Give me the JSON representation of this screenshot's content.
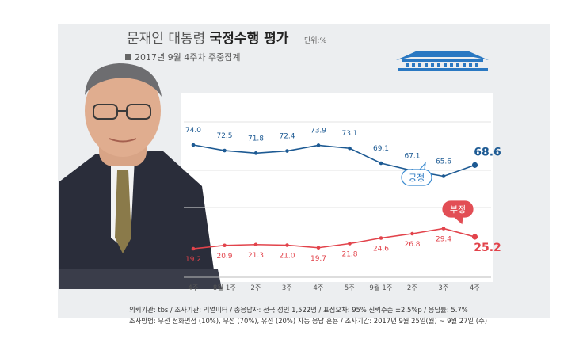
{
  "header": {
    "title_plain": "문재인 대통령",
    "title_bold": "국정수행 평가",
    "unit": "단위:%",
    "subtitle": "2017년 9월 4주차 주중집계"
  },
  "footer": {
    "line1": "의뢰기관: tbs / 조사기관: 리얼미터 / 총응답자: 전국 성인 1,522명 / 표집오차: 95% 신뢰수준 ±2.5%p / 응답률: 5.7%",
    "line2": "조사방법: 무선 전화면접 (10%), 무선 (70%), 유선 (20%) 자동 응답 혼용 / 조사기간: 2017년 9월 25일(월) ~ 9월 27일 (수)"
  },
  "chart_data": {
    "type": "line",
    "categories": [
      "4주",
      "8월 1주",
      "2주",
      "3주",
      "4주",
      "5주",
      "9월 1주",
      "2주",
      "3주",
      "4주"
    ],
    "series": [
      {
        "name": "긍정",
        "color": "#1d5a93",
        "values": [
          74.0,
          72.5,
          71.8,
          72.4,
          73.9,
          73.1,
          69.1,
          67.1,
          65.6,
          68.6
        ]
      },
      {
        "name": "부정",
        "color": "#e2434b",
        "values": [
          19.2,
          20.9,
          21.3,
          21.0,
          19.7,
          21.8,
          24.6,
          26.8,
          29.4,
          25.2
        ]
      }
    ],
    "value_labels": [
      [
        "74.0",
        "72.5",
        "71.8",
        "72.4",
        "73.9",
        "73.1",
        "69.1",
        "67.1",
        "65.6",
        "68.6"
      ],
      [
        "19.2",
        "20.9",
        "21.3",
        "21.0",
        "19.7",
        "21.8",
        "24.6",
        "26.8",
        "29.4",
        "25.2"
      ]
    ],
    "grid": true,
    "legend": "callouts"
  },
  "colors": {
    "positive": "#1d5a93",
    "negative": "#e2434b",
    "panel_bg": "#eceef0",
    "building": "#2a78c2"
  },
  "decor": {
    "portrait": "president-portrait",
    "logo": "blue-house-icon"
  }
}
